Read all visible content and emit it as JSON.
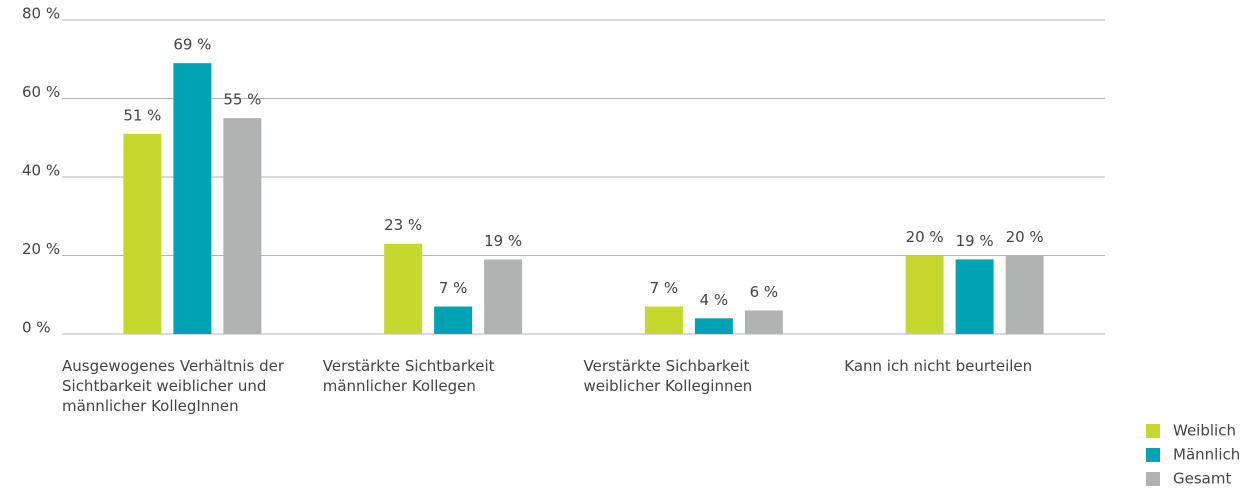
{
  "chart_data": {
    "type": "bar",
    "categories": [
      "Ausgewogenes Verhältnis der Sichtbarkeit weiblicher und männlicher KollegInnen",
      "Verstärkte Sichtbarkeit männlicher Kollegen",
      "Verstärkte Sichbarkeit weiblicher Kolleginnen",
      "Kann ich nicht beurteilen"
    ],
    "series": [
      {
        "name": "Weiblich",
        "color": "#c5d82e",
        "values": [
          51,
          23,
          7,
          20
        ],
        "value_labels": [
          "51 %",
          "23 %",
          "7 %",
          "20 %"
        ]
      },
      {
        "name": "Männlich",
        "color": "#00a3b4",
        "values": [
          69,
          7,
          4,
          19
        ],
        "value_labels": [
          "69 %",
          "7 %",
          "4 %",
          "19 %"
        ]
      },
      {
        "name": "Gesamt",
        "color": "#b1b3b3",
        "values": [
          55,
          19,
          6,
          20
        ],
        "value_labels": [
          "55 %",
          "19 %",
          "6 %",
          "20 %"
        ]
      }
    ],
    "ylim": [
      0,
      80
    ],
    "yticks": [
      {
        "value": 0,
        "label": "0 %"
      },
      {
        "value": 20,
        "label": "20 %"
      },
      {
        "value": 40,
        "label": "40 %"
      },
      {
        "value": 60,
        "label": "60 %"
      },
      {
        "value": 80,
        "label": "80 %"
      }
    ],
    "grid": true,
    "legend": "bottom-right"
  }
}
